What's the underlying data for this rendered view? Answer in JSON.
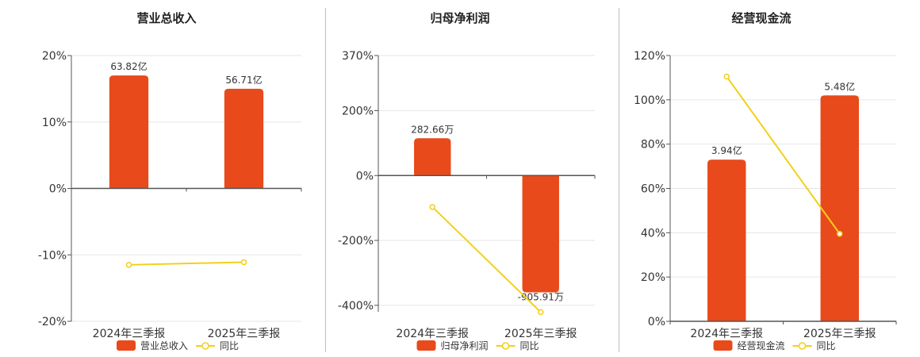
{
  "colors": {
    "bar": "#E84A1B",
    "line": "#F2D019",
    "grid": "#e6e6e6",
    "axis": "#555555"
  },
  "chart_data": [
    {
      "type": "bar",
      "title": "营业总收入",
      "categories": [
        "2024年三季报",
        "2025年三季报"
      ],
      "bar_values": [
        17,
        15
      ],
      "bar_labels": [
        "63.82亿",
        "56.71亿"
      ],
      "line_values": [
        -11.5,
        -11.1
      ],
      "ylim": [
        -20,
        20
      ],
      "yticks": [
        20,
        10,
        0,
        -10,
        -20
      ],
      "ytick_labels": [
        "20%",
        "10%",
        "0%",
        "-10%",
        "-20%"
      ],
      "legend": {
        "bar": "营业总收入",
        "line": "同比"
      }
    },
    {
      "type": "bar",
      "title": "归母净利润",
      "categories": [
        "2024年三季报",
        "2025年三季报"
      ],
      "bar_values": [
        115,
        -360
      ],
      "bar_labels": [
        "282.66万",
        "-905.91万"
      ],
      "line_values": [
        -97,
        -421
      ],
      "ylim": [
        -420,
        370
      ],
      "yticks": [
        370,
        200,
        0,
        -200,
        -400
      ],
      "ytick_labels": [
        "370%",
        "200%",
        "0%",
        "-200%",
        "-400%"
      ],
      "legend": {
        "bar": "归母净利润",
        "line": "同比"
      }
    },
    {
      "type": "bar",
      "title": "经营现金流",
      "categories": [
        "2024年三季报",
        "2025年三季报"
      ],
      "bar_values": [
        73,
        102
      ],
      "bar_labels": [
        "3.94亿",
        "5.48亿"
      ],
      "line_values": [
        110.5,
        39.5
      ],
      "ylim": [
        0,
        120
      ],
      "yticks": [
        120,
        100,
        80,
        60,
        40,
        20,
        0
      ],
      "ytick_labels": [
        "120%",
        "100%",
        "80%",
        "60%",
        "40%",
        "20%",
        "0%"
      ],
      "legend": {
        "bar": "经营现金流",
        "line": "同比"
      }
    }
  ]
}
